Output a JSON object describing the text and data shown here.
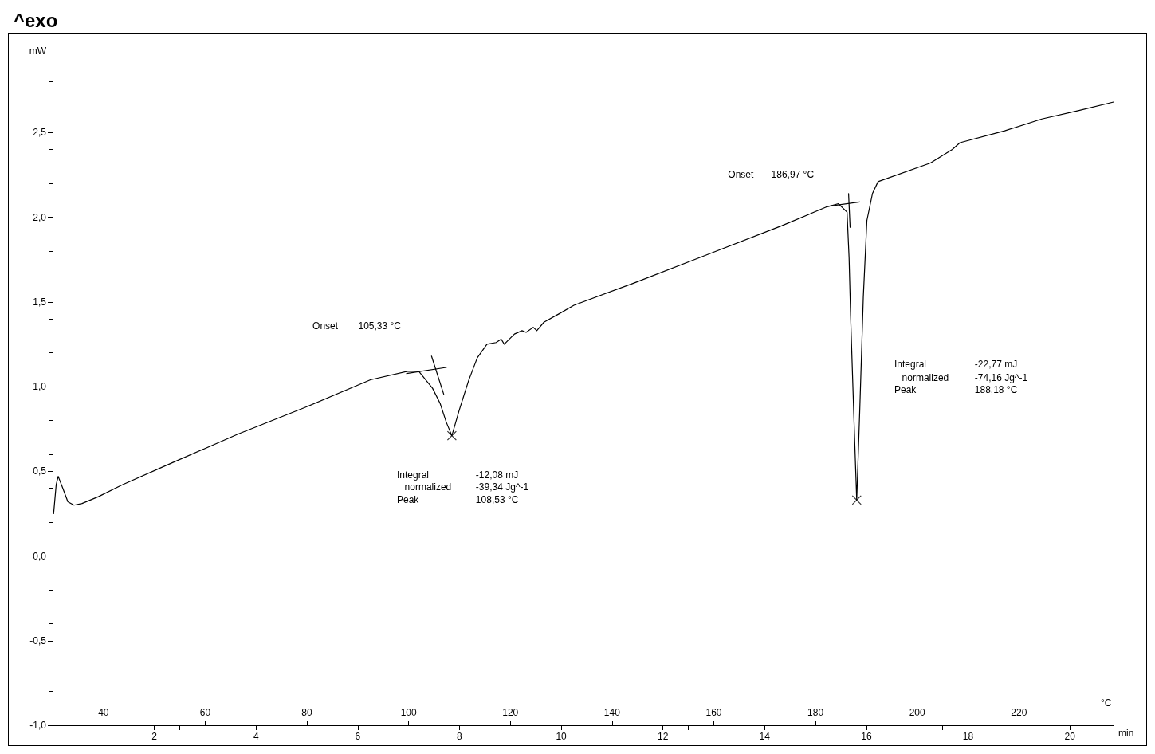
{
  "chart_data": {
    "type": "line",
    "title": "^exo",
    "xlabel": "min",
    "x2label": "°C",
    "ylabel": "mW",
    "xlim": [
      0,
      20.86
    ],
    "xticks": [
      2,
      4,
      6,
      8,
      10,
      12,
      14,
      16,
      18,
      20
    ],
    "x2lim": [
      30,
      238.6
    ],
    "x2ticks": [
      40,
      60,
      80,
      100,
      120,
      140,
      160,
      180,
      200,
      220
    ],
    "ylim": [
      -1.0,
      3.0
    ],
    "yticks": [
      {
        "value": -1.0,
        "label": "-1,0"
      },
      {
        "value": -0.5,
        "label": "-0,5"
      },
      {
        "value": 0,
        "label": "0,0"
      },
      {
        "value": 0.5,
        "label": "0,5"
      },
      {
        "value": 1.0,
        "label": "1,0"
      },
      {
        "value": 1.5,
        "label": "1,5"
      },
      {
        "value": 2.0,
        "label": "2,0"
      },
      {
        "value": 2.5,
        "label": "2,5"
      }
    ],
    "grid": false,
    "marker": "none",
    "line_style": "solid",
    "series": [
      {
        "color": "#000000",
        "x": [
          0.02,
          0.07,
          0.11,
          0.2,
          0.3,
          0.42,
          0.58,
          0.9,
          1.37,
          2.35,
          3.65,
          4.95,
          6.25,
          6.98,
          7.2,
          7.47,
          7.62,
          7.74,
          7.85,
          7.99,
          8.18,
          8.35,
          8.54,
          8.72,
          8.82,
          8.88,
          9.08,
          9.23,
          9.31,
          9.45,
          9.52,
          9.66,
          9.96,
          10.25,
          11.42,
          12.88,
          14.34,
          15.21,
          15.45,
          15.62,
          15.66,
          15.69,
          15.75,
          15.81,
          15.87,
          15.94,
          16.01,
          16.12,
          16.23,
          17.26,
          17.69,
          17.84,
          18.72,
          19.45,
          20.18,
          20.86
        ],
        "values": [
          0.25,
          0.42,
          0.47,
          0.4,
          0.32,
          0.3,
          0.31,
          0.35,
          0.42,
          0.55,
          0.72,
          0.875,
          1.04,
          1.09,
          1.09,
          0.99,
          0.9,
          0.79,
          0.71,
          0.856,
          1.036,
          1.17,
          1.25,
          1.26,
          1.28,
          1.25,
          1.31,
          1.33,
          1.32,
          1.35,
          1.33,
          1.38,
          1.43,
          1.48,
          1.61,
          1.78,
          1.95,
          2.06,
          2.08,
          2.03,
          1.76,
          1.42,
          0.86,
          0.33,
          0.86,
          1.53,
          1.98,
          2.14,
          2.21,
          2.32,
          2.4,
          2.44,
          2.51,
          2.58,
          2.63,
          2.68
        ]
      },
      {
        "type": "line",
        "color": "#000000",
        "x": [
          6.96,
          7.74
        ],
        "values": [
          1.077,
          1.113
        ]
      },
      {
        "type": "line",
        "color": "#000000",
        "x": [
          7.45,
          7.69
        ],
        "values": [
          1.18,
          0.955
        ]
      },
      {
        "type": "line",
        "color": "#000000",
        "x": [
          15.21,
          15.87
        ],
        "values": [
          2.063,
          2.09
        ]
      },
      {
        "type": "line",
        "color": "#000000",
        "x": [
          15.65,
          15.68
        ],
        "values": [
          2.14,
          1.94
        ]
      },
      {
        "type": "scatter",
        "marker": "cross",
        "color": "#000000",
        "x": [
          7.85,
          15.81
        ],
        "values": [
          0.71,
          0.33
        ]
      }
    ],
    "annotations": [
      "Onset",
      "105,33 °C",
      "Integral",
      "-12,08 mJ",
      "normalized",
      "-39,34 Jg^-1",
      "Peak",
      "108,53 °C",
      "Onset",
      "186,97 °C",
      "Integral",
      "-22,77 mJ",
      "normalized",
      "-74,16 Jg^-1",
      "Peak",
      "188,18 °C"
    ]
  }
}
